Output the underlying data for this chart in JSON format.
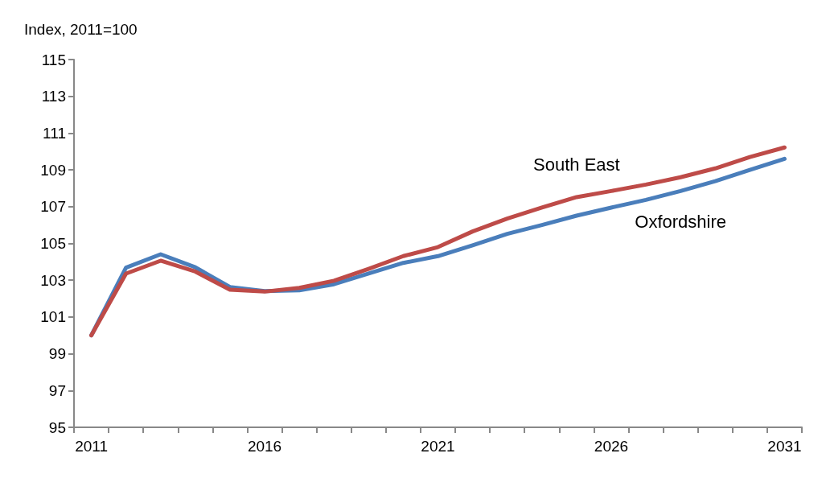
{
  "chart_data": {
    "type": "line",
    "ylabel": "Index, 2011=100",
    "categories": [
      "2011",
      null,
      null,
      null,
      null,
      "2016",
      null,
      null,
      null,
      null,
      "2021",
      null,
      null,
      null,
      null,
      "2026",
      null,
      null,
      null,
      null,
      "2031"
    ],
    "series": [
      {
        "name": "Oxfordshire",
        "color": "#4a7ebb",
        "values": [
          100,
          103.68,
          104.41,
          103.7,
          102.63,
          102.41,
          102.45,
          102.78,
          103.36,
          103.94,
          104.31,
          104.9,
          105.52,
          106.0,
          106.51,
          106.95,
          107.37,
          107.85,
          108.39,
          109.0,
          109.6
        ]
      },
      {
        "name": "South East",
        "color": "#be4b48",
        "values": [
          100,
          103.36,
          104.06,
          103.47,
          102.48,
          102.38,
          102.58,
          102.97,
          103.62,
          104.31,
          104.8,
          105.65,
          106.35,
          106.95,
          107.52,
          107.85,
          108.2,
          108.6,
          109.08,
          109.7,
          110.22
        ]
      }
    ],
    "ylim": [
      95,
      115
    ],
    "yticks": [
      95,
      97,
      99,
      101,
      103,
      105,
      107,
      109,
      111,
      113,
      115
    ],
    "grid": false,
    "legend": false,
    "marker": "none",
    "line_style": "solid"
  }
}
